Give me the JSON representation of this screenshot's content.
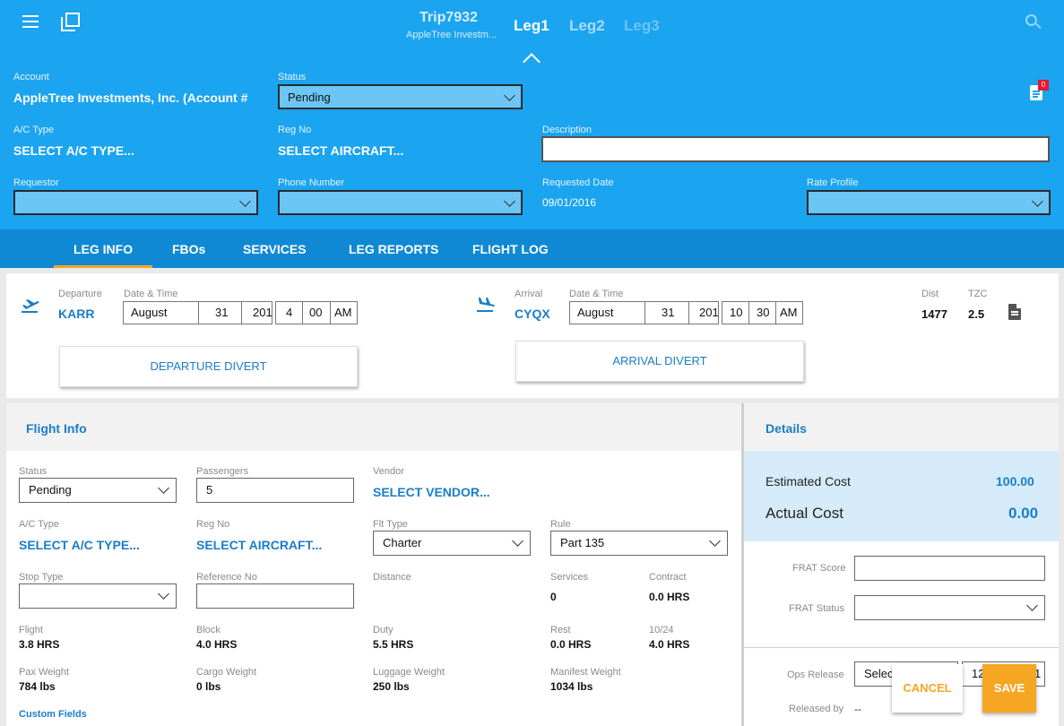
{
  "header": {
    "trip": "Trip7932",
    "trip_sub": "AppleTree Investm...",
    "legs": [
      "Leg1",
      "Leg2",
      "Leg3"
    ],
    "notif_count": "0"
  },
  "form": {
    "account_label": "Account",
    "account_value": "AppleTree Investments, Inc. (Account #",
    "status_label": "Status",
    "status_value": "Pending",
    "actype_label": "A/C Type",
    "actype_value": "SELECT A/C TYPE...",
    "regno_label": "Reg No",
    "regno_value": "SELECT AIRCRAFT...",
    "description_label": "Description",
    "requestor_label": "Requestor",
    "phone_label": "Phone Number",
    "reqdate_label": "Requested Date",
    "reqdate_value": "09/01/2016",
    "rate_label": "Rate Profile"
  },
  "tabs": [
    "LEG INFO",
    "FBOs",
    "SERVICES",
    "LEG REPORTS",
    "FLIGHT LOG"
  ],
  "leg": {
    "departure_label": "Departure",
    "departure_code": "KARR",
    "datetime_label": "Date & Time",
    "dep_month": "August",
    "dep_day": "31",
    "dep_year": "201",
    "dep_hour": "4",
    "dep_min": "00",
    "dep_ampm": "AM",
    "arrival_label": "Arrival",
    "arrival_code": "CYQX",
    "arr_month": "August",
    "arr_day": "31",
    "arr_year": "201",
    "arr_hour": "10",
    "arr_min": "30",
    "arr_ampm": "AM",
    "dist_label": "Dist",
    "dist_value": "1477",
    "tzc_label": "TZC",
    "tzc_value": "2.5",
    "dep_divert": "DEPARTURE DIVERT",
    "arr_divert": "ARRIVAL DIVERT"
  },
  "flight_info": {
    "title": "Flight Info",
    "status_label": "Status",
    "status_value": "Pending",
    "passengers_label": "Passengers",
    "passengers_value": "5",
    "vendor_label": "Vendor",
    "vendor_value": "SELECT VENDOR...",
    "actype_label": "A/C Type",
    "actype_value": "SELECT A/C TYPE...",
    "regno_label": "Reg No",
    "regno_value": "SELECT AIRCRAFT...",
    "flttype_label": "Flt Type",
    "flttype_value": "Charter",
    "rule_label": "Rule",
    "rule_value": "Part 135",
    "stoptype_label": "Stop Type",
    "refno_label": "Reference No",
    "distance_label": "Distance",
    "services_label": "Services",
    "services_value": "0",
    "contract_label": "Contract",
    "contract_value": "0.0 HRS",
    "flight_label": "Flight",
    "flight_value": "3.8 HRS",
    "block_label": "Block",
    "block_value": "4.0 HRS",
    "duty_label": "Duty",
    "duty_value": "5.5 HRS",
    "rest_label": "Rest",
    "rest_value": "0.0 HRS",
    "ratio_label": "10/24",
    "ratio_value": "4.0 HRS",
    "paxw_label": "Pax Weight",
    "paxw_value": "784 lbs",
    "cargow_label": "Cargo Weight",
    "cargow_value": "0 lbs",
    "lugw_label": "Luggage Weight",
    "lugw_value": "250 lbs",
    "manw_label": "Manifest Weight",
    "manw_value": "1034 lbs",
    "custom_fields": "Custom Fields"
  },
  "details": {
    "title": "Details",
    "est_label": "Estimated Cost",
    "est_value": "100.00",
    "act_label": "Actual Cost",
    "act_value": "0.00",
    "frat_score_label": "FRAT Score",
    "frat_status_label": "FRAT Status",
    "ops_release_label": "Ops Release",
    "ops_select": "Select",
    "ops_time": "12",
    "ops_time_end": "1",
    "released_by_label": "Released by",
    "released_by_value": "--"
  },
  "actions": {
    "cancel": "CANCEL",
    "save": "SAVE"
  }
}
